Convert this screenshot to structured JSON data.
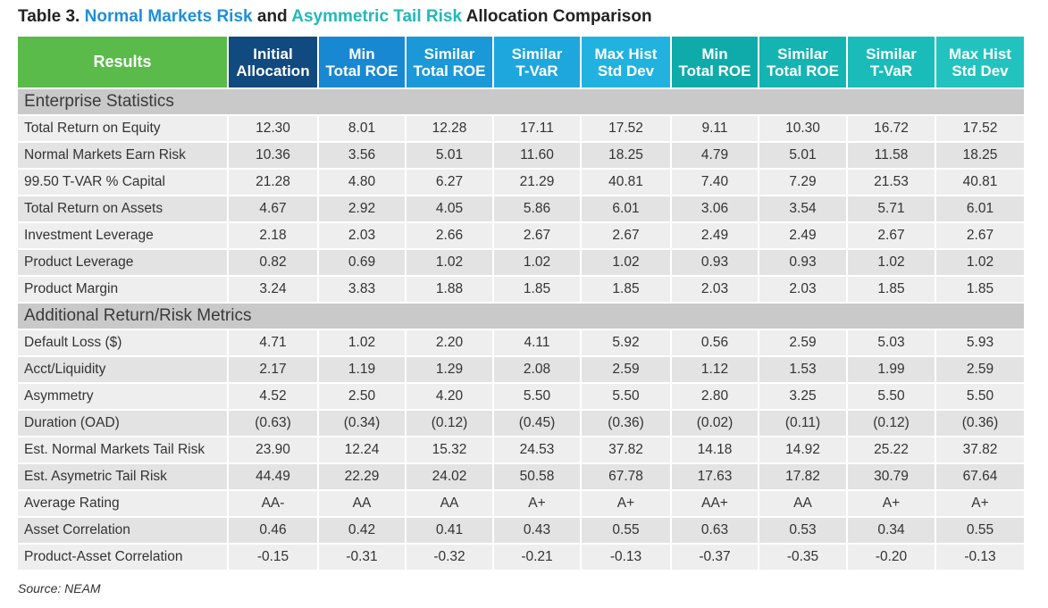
{
  "title": {
    "prefix": "Table 3. ",
    "part1": "Normal Markets Risk",
    "mid": " and ",
    "part2": "Asymmetric Tail Risk",
    "suffix": " Allocation Comparison"
  },
  "colors": {
    "results_header": "#5aba4a",
    "initial_header": "#114a7e",
    "normal_headers": "#1988d2",
    "tail_headers": "#0eabaa"
  },
  "headers": [
    [
      "Results"
    ],
    [
      "Initial",
      "Allocation"
    ],
    [
      "Min",
      "Total ROE"
    ],
    [
      "Similar",
      "Total ROE"
    ],
    [
      "Similar",
      "T-VaR"
    ],
    [
      "Max Hist",
      "Std Dev"
    ],
    [
      "Min",
      "Total ROE"
    ],
    [
      "Similar",
      "Total ROE"
    ],
    [
      "Similar",
      "T-VaR"
    ],
    [
      "Max Hist",
      "Std Dev"
    ]
  ],
  "sections": [
    {
      "title": "Enterprise Statistics",
      "rows": [
        {
          "label": "Total Return on Equity",
          "values": [
            "12.30",
            "8.01",
            "12.28",
            "17.11",
            "17.52",
            "9.11",
            "10.30",
            "16.72",
            "17.52"
          ]
        },
        {
          "label": "Normal Markets Earn Risk",
          "values": [
            "10.36",
            "3.56",
            "5.01",
            "11.60",
            "18.25",
            "4.79",
            "5.01",
            "11.58",
            "18.25"
          ]
        },
        {
          "label": "99.50 T-VAR % Capital",
          "values": [
            "21.28",
            "4.80",
            "6.27",
            "21.29",
            "40.81",
            "7.40",
            "7.29",
            "21.53",
            "40.81"
          ]
        },
        {
          "label": "Total Return on Assets",
          "values": [
            "4.67",
            "2.92",
            "4.05",
            "5.86",
            "6.01",
            "3.06",
            "3.54",
            "5.71",
            "6.01"
          ]
        },
        {
          "label": "Investment Leverage",
          "values": [
            "2.18",
            "2.03",
            "2.66",
            "2.67",
            "2.67",
            "2.49",
            "2.49",
            "2.67",
            "2.67"
          ]
        },
        {
          "label": "Product Leverage",
          "values": [
            "0.82",
            "0.69",
            "1.02",
            "1.02",
            "1.02",
            "0.93",
            "0.93",
            "1.02",
            "1.02"
          ]
        },
        {
          "label": "Product Margin",
          "values": [
            "3.24",
            "3.83",
            "1.88",
            "1.85",
            "1.85",
            "2.03",
            "2.03",
            "1.85",
            "1.85"
          ]
        }
      ]
    },
    {
      "title": "Additional Return/Risk Metrics",
      "rows": [
        {
          "label": "Default Loss ($)",
          "values": [
            "4.71",
            "1.02",
            "2.20",
            "4.11",
            "5.92",
            "0.56",
            "2.59",
            "5.03",
            "5.93"
          ]
        },
        {
          "label": "Acct/Liquidity",
          "values": [
            "2.17",
            "1.19",
            "1.29",
            "2.08",
            "2.59",
            "1.12",
            "1.53",
            "1.99",
            "2.59"
          ]
        },
        {
          "label": "Asymmetry",
          "values": [
            "4.52",
            "2.50",
            "4.20",
            "5.50",
            "5.50",
            "2.80",
            "3.25",
            "5.50",
            "5.50"
          ]
        },
        {
          "label": "Duration (OAD)",
          "values": [
            "(0.63)",
            "(0.34)",
            "(0.12)",
            "(0.45)",
            "(0.36)",
            "(0.02)",
            "(0.11)",
            "(0.12)",
            "(0.36)"
          ]
        },
        {
          "label": "Est. Normal Markets Tail Risk",
          "values": [
            "23.90",
            "12.24",
            "15.32",
            "24.53",
            "37.82",
            "14.18",
            "14.92",
            "25.22",
            "37.82"
          ]
        },
        {
          "label": "Est. Asymetric Tail Risk",
          "values": [
            "44.49",
            "22.29",
            "24.02",
            "50.58",
            "67.78",
            "17.63",
            "17.82",
            "30.79",
            "67.64"
          ]
        },
        {
          "label": "Average Rating",
          "values": [
            "AA-",
            "AA",
            "AA",
            "A+",
            "A+",
            "AA+",
            "AA",
            "A+",
            "A+"
          ]
        },
        {
          "label": "Asset Correlation",
          "values": [
            "0.46",
            "0.42",
            "0.41",
            "0.43",
            "0.55",
            "0.63",
            "0.53",
            "0.34",
            "0.55"
          ]
        },
        {
          "label": "Product-Asset Correlation",
          "values": [
            "-0.15",
            "-0.31",
            "-0.32",
            "-0.21",
            "-0.13",
            "-0.37",
            "-0.35",
            "-0.20",
            "-0.13"
          ]
        }
      ]
    }
  ],
  "source": "Source: NEAM"
}
